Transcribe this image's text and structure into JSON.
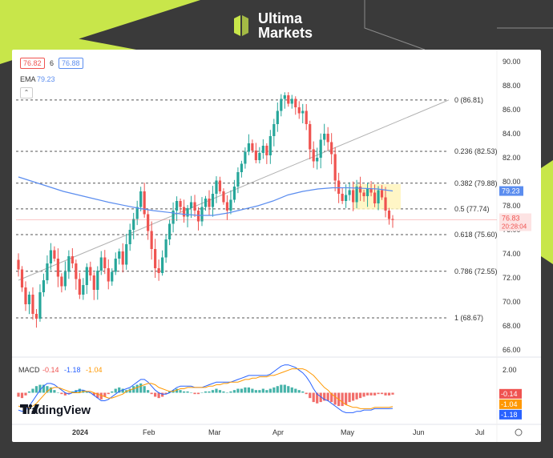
{
  "brand": {
    "line1": "Ultima",
    "line2": "Markets",
    "accent": "#c8e64a"
  },
  "watermark": "TradingView",
  "header": {
    "bid": "76.82",
    "spread": "6",
    "ask": "76.88",
    "ema_label": "EMA",
    "ema_value": "79.23"
  },
  "colors": {
    "up": "#26a69a",
    "down": "#ef5350",
    "ema": "#5b8def",
    "trend": "#b0b0b0",
    "macd": "#2962ff",
    "signal": "#ff9800"
  },
  "chart_data": {
    "type": "candlestick",
    "price_axis": {
      "min": 66,
      "max": 90,
      "ticks": [
        "90.00",
        "88.00",
        "86.00",
        "84.00",
        "82.00",
        "80.00",
        "78.00",
        "76.00",
        "74.00",
        "72.00",
        "70.00",
        "68.00",
        "66.00"
      ]
    },
    "time_axis": [
      "2024",
      "Feb",
      "Mar",
      "Apr",
      "May",
      "Jun",
      "Jul"
    ],
    "fibonacci": [
      {
        "level": "0",
        "price": 86.81,
        "label": "0 (86.81)"
      },
      {
        "level": "0.236",
        "price": 82.53,
        "label": "0.236 (82.53)"
      },
      {
        "level": "0.382",
        "price": 79.88,
        "label": "0.382 (79.88)"
      },
      {
        "level": "0.5",
        "price": 77.74,
        "label": "0.5 (77.74)"
      },
      {
        "level": "0.618",
        "price": 75.6,
        "label": "0.618 (75.60)"
      },
      {
        "level": "0.786",
        "price": 72.55,
        "label": "0.786 (72.55)"
      },
      {
        "level": "1",
        "price": 68.67,
        "label": "1 (68.67)"
      }
    ],
    "last_price": {
      "value": "76.83",
      "countdown": "20:28:04"
    },
    "ema_last": "79.23",
    "closes": [
      72.7,
      71.2,
      69.8,
      70.6,
      69.0,
      68.6,
      70.8,
      71.8,
      73.2,
      74.3,
      73.6,
      72.1,
      71.3,
      72.5,
      73.8,
      73.2,
      71.9,
      70.6,
      71.4,
      72.9,
      72.2,
      71.0,
      72.6,
      73.7,
      72.8,
      71.7,
      72.5,
      73.6,
      74.2,
      73.1,
      74.8,
      76.0,
      76.9,
      77.9,
      79.2,
      77.3,
      75.9,
      74.4,
      72.8,
      72.4,
      73.7,
      75.2,
      76.5,
      77.6,
      78.4,
      77.9,
      77.1,
      77.8,
      78.3,
      77.6,
      76.7,
      77.9,
      78.6,
      77.9,
      79.0,
      80.1,
      79.2,
      78.3,
      77.6,
      78.5,
      79.6,
      80.8,
      81.5,
      82.5,
      83.2,
      82.6,
      81.8,
      82.4,
      83.0,
      82.2,
      83.8,
      84.8,
      85.9,
      86.9,
      87.2,
      86.5,
      86.9,
      86.2,
      85.7,
      85.9,
      84.8,
      82.7,
      81.7,
      82.0,
      83.5,
      84.0,
      83.3,
      82.3,
      80.1,
      79.0,
      78.4,
      78.9,
      79.3,
      78.3,
      79.6,
      79.1,
      78.8,
      79.4,
      79.1,
      78.2,
      79.3,
      78.7,
      77.6,
      76.9,
      76.83
    ],
    "ema_values": [
      80.4,
      80.0,
      79.6,
      79.2,
      78.9,
      78.6,
      78.3,
      78.05,
      77.8,
      77.6,
      77.45,
      77.3,
      77.2,
      77.2,
      77.4,
      77.7,
      78.0,
      78.4,
      78.9,
      79.2,
      79.4,
      79.5,
      79.5,
      79.45,
      79.4,
      79.23
    ],
    "macd": {
      "labels": {
        "name": "MACD",
        "hist": "-0.14",
        "macd": "-1.18",
        "signal": "-1.04"
      },
      "axis": {
        "top": "2.00"
      },
      "hist": [
        -0.3,
        -0.4,
        -0.2,
        0.1,
        0.3,
        0.5,
        0.6,
        0.6,
        0.5,
        0.4,
        0.2,
        0.0,
        -0.1,
        -0.2,
        -0.1,
        0.1,
        0.2,
        0.3,
        0.2,
        0.1,
        0.0,
        -0.2,
        -0.4,
        -0.5,
        -0.3,
        -0.1,
        0.1,
        0.3,
        0.4,
        0.3,
        0.2,
        0.3,
        0.5,
        0.6,
        0.7,
        0.5,
        0.2,
        -0.1,
        -0.3,
        -0.4,
        -0.3,
        -0.1,
        0.1,
        0.2,
        0.3,
        0.2,
        0.1,
        0.1,
        0.0,
        -0.1,
        -0.1,
        0.0,
        0.1,
        0.1,
        0.2,
        0.3,
        0.2,
        0.1,
        0.0,
        0.1,
        0.2,
        0.3,
        0.3,
        0.4,
        0.4,
        0.3,
        0.2,
        0.2,
        0.3,
        0.2,
        0.3,
        0.4,
        0.5,
        0.6,
        0.6,
        0.5,
        0.4,
        0.3,
        0.2,
        0.1,
        -0.1,
        -0.4,
        -0.7,
        -0.8,
        -0.7,
        -0.6,
        -0.6,
        -0.7,
        -0.9,
        -1.0,
        -1.0,
        -0.9,
        -0.7,
        -0.6,
        -0.5,
        -0.4,
        -0.3,
        -0.2,
        -0.2,
        -0.2,
        -0.1,
        -0.1,
        -0.2,
        -0.2,
        -0.14
      ],
      "macd_line": [
        -1.3,
        -1.4,
        -1.3,
        -1.0,
        -0.6,
        -0.2,
        0.2,
        0.5,
        0.7,
        0.7,
        0.6,
        0.4,
        0.2,
        0.0,
        -0.1,
        0.0,
        0.1,
        0.2,
        0.2,
        0.1,
        0.0,
        -0.2,
        -0.4,
        -0.6,
        -0.6,
        -0.5,
        -0.3,
        -0.1,
        0.1,
        0.2,
        0.3,
        0.4,
        0.6,
        0.8,
        1.0,
        1.0,
        0.8,
        0.5,
        0.2,
        0.0,
        -0.1,
        -0.1,
        0.0,
        0.2,
        0.4,
        0.5,
        0.5,
        0.5,
        0.5,
        0.4,
        0.4,
        0.4,
        0.5,
        0.6,
        0.7,
        0.8,
        0.8,
        0.8,
        0.8,
        0.8,
        0.9,
        1.0,
        1.1,
        1.2,
        1.3,
        1.3,
        1.3,
        1.3,
        1.3,
        1.3,
        1.4,
        1.6,
        1.8,
        2.0,
        2.1,
        2.1,
        2.0,
        1.9,
        1.7,
        1.5,
        1.2,
        0.8,
        0.3,
        -0.1,
        -0.3,
        -0.5,
        -0.6,
        -0.8,
        -1.0,
        -1.2,
        -1.4,
        -1.5,
        -1.5,
        -1.5,
        -1.4,
        -1.4,
        -1.3,
        -1.3,
        -1.3,
        -1.2,
        -1.2,
        -1.2,
        -1.2,
        -1.2,
        -1.18
      ],
      "signal_line": [
        -1.0,
        -1.1,
        -1.1,
        -1.1,
        -1.0,
        -0.8,
        -0.5,
        -0.2,
        0.1,
        0.3,
        0.4,
        0.4,
        0.3,
        0.2,
        0.1,
        0.0,
        0.0,
        0.0,
        0.1,
        0.1,
        0.1,
        0.0,
        -0.1,
        -0.2,
        -0.3,
        -0.4,
        -0.4,
        -0.3,
        -0.2,
        -0.1,
        0.1,
        0.2,
        0.3,
        0.4,
        0.5,
        0.6,
        0.7,
        0.7,
        0.6,
        0.4,
        0.3,
        0.2,
        0.1,
        0.1,
        0.2,
        0.3,
        0.3,
        0.4,
        0.4,
        0.4,
        0.4,
        0.4,
        0.4,
        0.5,
        0.5,
        0.6,
        0.6,
        0.7,
        0.7,
        0.8,
        0.8,
        0.8,
        0.9,
        1.0,
        1.0,
        1.1,
        1.1,
        1.2,
        1.2,
        1.2,
        1.3,
        1.3,
        1.4,
        1.5,
        1.6,
        1.7,
        1.8,
        1.8,
        1.8,
        1.8,
        1.7,
        1.5,
        1.3,
        1.0,
        0.7,
        0.4,
        0.2,
        -0.1,
        -0.3,
        -0.5,
        -0.7,
        -0.9,
        -1.0,
        -1.1,
        -1.1,
        -1.2,
        -1.2,
        -1.2,
        -1.2,
        -1.1,
        -1.1,
        -1.1,
        -1.1,
        -1.1,
        -1.04
      ]
    }
  }
}
